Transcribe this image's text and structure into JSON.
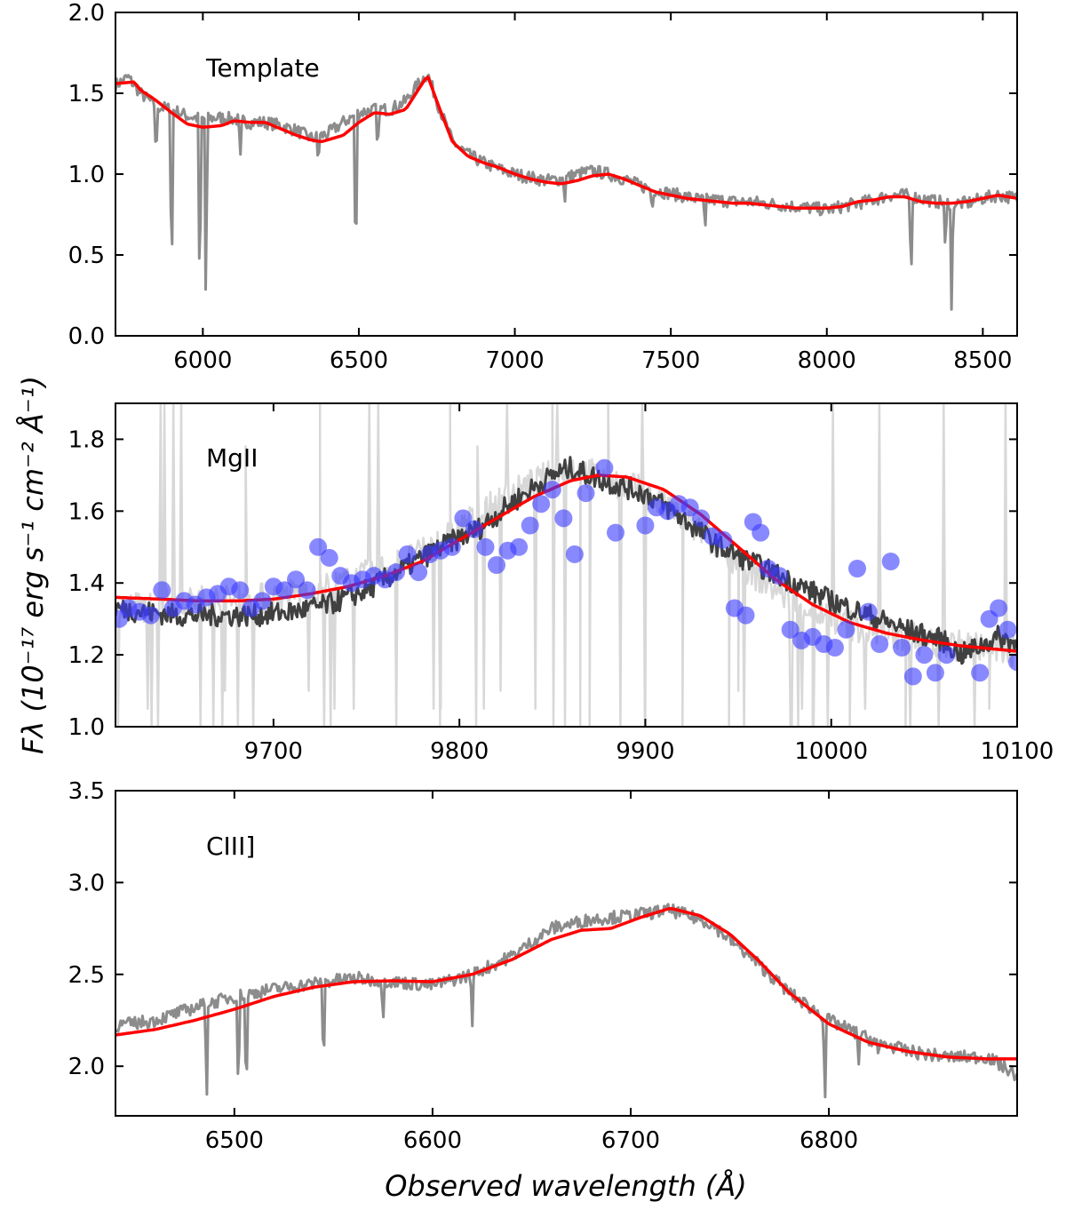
{
  "figure": {
    "ylabel": "Fλ (10⁻¹⁷ erg s⁻¹ cm⁻² Å⁻¹)",
    "xlabel": "Observed wavelength (Å)"
  },
  "colors": {
    "spectrum_gray": "#8c8c8c",
    "model_red": "#ff0000",
    "spectrum_dark": "#404040",
    "spectrum_light": "#d8d8d8",
    "binned_blue": "#3b3bff"
  },
  "chart_data": [
    {
      "type": "line",
      "label": "Template",
      "xlim": [
        5720,
        8610
      ],
      "ylim": [
        0.0,
        2.0
      ],
      "xticks": [
        "6000",
        "6500",
        "7000",
        "7500",
        "8000",
        "8500"
      ],
      "yticks": [
        "0.0",
        "0.5",
        "1.0",
        "1.5",
        "2.0"
      ],
      "series": [
        {
          "name": "template spectrum",
          "color": "#8c8c8c",
          "x": [
            5720,
            5760,
            5800,
            5850,
            5900,
            5950,
            6000,
            6050,
            6100,
            6150,
            6200,
            6250,
            6300,
            6350,
            6400,
            6450,
            6500,
            6550,
            6600,
            6650,
            6700,
            6720,
            6760,
            6800,
            6850,
            6900,
            6950,
            7000,
            7050,
            7100,
            7150,
            7200,
            7250,
            7300,
            7350,
            7400,
            7450,
            7500,
            7550,
            7600,
            7650,
            7700,
            7750,
            7800,
            7850,
            7900,
            7950,
            8000,
            8050,
            8100,
            8150,
            8200,
            8250,
            8300,
            8350,
            8400,
            8450,
            8500,
            8550,
            8610
          ],
          "y": [
            1.55,
            1.6,
            1.5,
            1.42,
            1.4,
            1.36,
            1.34,
            1.35,
            1.34,
            1.32,
            1.32,
            1.3,
            1.27,
            1.22,
            1.25,
            1.32,
            1.38,
            1.4,
            1.4,
            1.45,
            1.58,
            1.62,
            1.4,
            1.2,
            1.12,
            1.07,
            1.03,
            1.0,
            0.98,
            0.96,
            0.97,
            1.0,
            1.02,
            1.0,
            0.97,
            0.93,
            0.9,
            0.88,
            0.86,
            0.84,
            0.84,
            0.83,
            0.83,
            0.82,
            0.81,
            0.8,
            0.79,
            0.78,
            0.8,
            0.82,
            0.84,
            0.87,
            0.87,
            0.85,
            0.83,
            0.82,
            0.82,
            0.85,
            0.87,
            0.85
          ],
          "absorption_dips": [
            [
              5850,
              1.05
            ],
            [
              5900,
              0.15
            ],
            [
              5990,
              0.05
            ],
            [
              6010,
              0.02
            ],
            [
              6120,
              1.1
            ],
            [
              6370,
              1.05
            ],
            [
              6490,
              0.22
            ],
            [
              6560,
              1.1
            ],
            [
              7160,
              0.8
            ],
            [
              7440,
              0.75
            ],
            [
              7610,
              0.65
            ],
            [
              8270,
              0.27
            ],
            [
              8380,
              0.5
            ],
            [
              8400,
              0.08
            ]
          ]
        },
        {
          "name": "template model",
          "color": "#ff0000",
          "x": [
            5720,
            5780,
            5800,
            5840,
            5900,
            5950,
            6000,
            6060,
            6100,
            6150,
            6200,
            6250,
            6300,
            6350,
            6380,
            6450,
            6500,
            6550,
            6600,
            6650,
            6690,
            6720,
            6760,
            6800,
            6850,
            6900,
            6950,
            7000,
            7050,
            7100,
            7150,
            7200,
            7250,
            7300,
            7350,
            7400,
            7450,
            7500,
            7550,
            7600,
            7650,
            7700,
            7750,
            7800,
            7850,
            7900,
            7950,
            8000,
            8050,
            8100,
            8150,
            8200,
            8250,
            8300,
            8350,
            8400,
            8450,
            8500,
            8550,
            8610
          ],
          "y": [
            1.56,
            1.57,
            1.52,
            1.47,
            1.38,
            1.31,
            1.29,
            1.3,
            1.33,
            1.32,
            1.32,
            1.28,
            1.24,
            1.21,
            1.2,
            1.24,
            1.32,
            1.38,
            1.37,
            1.4,
            1.52,
            1.61,
            1.4,
            1.2,
            1.11,
            1.07,
            1.04,
            1.0,
            0.97,
            0.95,
            0.94,
            0.96,
            0.99,
            1.0,
            0.97,
            0.93,
            0.89,
            0.87,
            0.85,
            0.84,
            0.83,
            0.82,
            0.82,
            0.81,
            0.8,
            0.79,
            0.79,
            0.79,
            0.8,
            0.83,
            0.84,
            0.86,
            0.86,
            0.83,
            0.82,
            0.82,
            0.83,
            0.85,
            0.87,
            0.85
          ]
        }
      ]
    },
    {
      "type": "line",
      "label": "MgII",
      "xlim": [
        9615,
        10100
      ],
      "ylim": [
        1.0,
        1.9
      ],
      "xticks": [
        "9700",
        "9800",
        "9900",
        "10000",
        "10100"
      ],
      "yticks": [
        "1.0",
        "1.2",
        "1.4",
        "1.6",
        "1.8"
      ],
      "series": [
        {
          "name": "raw spectrum",
          "color": "#d8d8d8",
          "x": [
            9615,
            9640,
            9660,
            9680,
            9700,
            9720,
            9740,
            9760,
            9780,
            9800,
            9820,
            9840,
            9860,
            9880,
            9900,
            9920,
            9940,
            9960,
            9980,
            10000,
            10020,
            10040,
            10060,
            10080,
            10100
          ],
          "y": [
            1.33,
            1.34,
            1.35,
            1.35,
            1.36,
            1.38,
            1.4,
            1.44,
            1.48,
            1.55,
            1.62,
            1.68,
            1.72,
            1.69,
            1.65,
            1.58,
            1.5,
            1.42,
            1.35,
            1.3,
            1.27,
            1.25,
            1.23,
            1.22,
            1.21
          ],
          "spikes": [
            [
              9685,
              1.78
            ],
            [
              9725,
              1.9
            ],
            [
              9790,
              1.05
            ],
            [
              9795,
              1.9
            ],
            [
              9850,
              1.9
            ],
            [
              9865,
              1.0
            ],
            [
              9870,
              1.0
            ],
            [
              9880,
              1.9
            ],
            [
              9900,
              1.0
            ],
            [
              9920,
              1.0
            ],
            [
              9945,
              1.0
            ],
            [
              9950,
              1.1
            ],
            [
              9990,
              1.0
            ],
            [
              10010,
              1.0
            ],
            [
              10040,
              1.0
            ],
            [
              10085,
              1.05
            ]
          ]
        },
        {
          "name": "cleaned spectrum",
          "color": "#404040",
          "x": [
            9615,
            9630,
            9650,
            9670,
            9690,
            9710,
            9730,
            9750,
            9770,
            9790,
            9810,
            9830,
            9850,
            9860,
            9880,
            9900,
            9920,
            9940,
            9960,
            9980,
            10000,
            10020,
            10040,
            10060,
            10070,
            10090,
            10100
          ],
          "y": [
            1.33,
            1.32,
            1.31,
            1.31,
            1.31,
            1.32,
            1.34,
            1.38,
            1.44,
            1.5,
            1.55,
            1.63,
            1.7,
            1.72,
            1.68,
            1.65,
            1.58,
            1.5,
            1.45,
            1.4,
            1.35,
            1.31,
            1.27,
            1.24,
            1.2,
            1.25,
            1.23
          ]
        },
        {
          "name": "Gaussian fit",
          "color": "#ff0000",
          "x": [
            9615,
            9640,
            9660,
            9680,
            9700,
            9720,
            9740,
            9760,
            9780,
            9800,
            9820,
            9840,
            9860,
            9875,
            9890,
            9910,
            9930,
            9950,
            9970,
            9990,
            10010,
            10030,
            10050,
            10070,
            10100
          ],
          "y": [
            1.36,
            1.355,
            1.35,
            1.35,
            1.355,
            1.37,
            1.39,
            1.42,
            1.46,
            1.52,
            1.58,
            1.64,
            1.685,
            1.7,
            1.695,
            1.66,
            1.59,
            1.5,
            1.41,
            1.34,
            1.29,
            1.26,
            1.24,
            1.225,
            1.21
          ]
        },
        {
          "name": "binned points",
          "color": "#3b3bff",
          "type": "scatter",
          "x": [
            9617,
            9622,
            9628,
            9634,
            9640,
            9646,
            9652,
            9658,
            9664,
            9670,
            9676,
            9682,
            9688,
            9694,
            9700,
            9706,
            9712,
            9718,
            9724,
            9730,
            9736,
            9742,
            9748,
            9754,
            9760,
            9766,
            9772,
            9778,
            9784,
            9790,
            9796,
            9802,
            9808,
            9814,
            9820,
            9826,
            9832,
            9838,
            9844,
            9850,
            9856,
            9862,
            9868,
            9878,
            9884,
            9900,
            9906,
            9912,
            9918,
            9924,
            9930,
            9936,
            9942,
            9948,
            9954,
            9958,
            9962,
            9966,
            9972,
            9978,
            9984,
            9990,
            9996,
            10002,
            10008,
            10014,
            10020,
            10026,
            10032,
            10038,
            10044,
            10050,
            10056,
            10062,
            10080,
            10085,
            10090,
            10095,
            10100
          ],
          "y": [
            1.3,
            1.33,
            1.32,
            1.31,
            1.38,
            1.33,
            1.35,
            1.34,
            1.36,
            1.37,
            1.39,
            1.38,
            1.33,
            1.35,
            1.39,
            1.38,
            1.41,
            1.38,
            1.5,
            1.47,
            1.42,
            1.4,
            1.41,
            1.42,
            1.41,
            1.43,
            1.48,
            1.43,
            1.48,
            1.49,
            1.5,
            1.58,
            1.55,
            1.5,
            1.45,
            1.49,
            1.5,
            1.56,
            1.62,
            1.66,
            1.58,
            1.48,
            1.65,
            1.72,
            1.54,
            1.56,
            1.61,
            1.6,
            1.62,
            1.61,
            1.58,
            1.53,
            1.52,
            1.33,
            1.31,
            1.57,
            1.54,
            1.44,
            1.42,
            1.27,
            1.24,
            1.25,
            1.23,
            1.22,
            1.27,
            1.44,
            1.32,
            1.23,
            1.46,
            1.22,
            1.14,
            1.2,
            1.15,
            1.2,
            1.15,
            1.3,
            1.33,
            1.27,
            1.18
          ]
        }
      ]
    },
    {
      "type": "line",
      "label": "CIII]",
      "xlim": [
        6440,
        6895
      ],
      "ylim": [
        1.73,
        3.5
      ],
      "xticks": [
        "6500",
        "6600",
        "6700",
        "6800"
      ],
      "yticks": [
        "2.0",
        "2.5",
        "3.0",
        "3.5"
      ],
      "series": [
        {
          "name": "CIII] spectrum",
          "color": "#8c8c8c",
          "x": [
            6440,
            6460,
            6480,
            6500,
            6520,
            6540,
            6560,
            6580,
            6600,
            6620,
            6640,
            6660,
            6680,
            6700,
            6720,
            6740,
            6760,
            6780,
            6800,
            6820,
            6840,
            6860,
            6880,
            6895
          ],
          "y": [
            2.22,
            2.25,
            2.32,
            2.38,
            2.42,
            2.45,
            2.48,
            2.46,
            2.44,
            2.5,
            2.6,
            2.75,
            2.8,
            2.82,
            2.85,
            2.78,
            2.6,
            2.4,
            2.25,
            2.15,
            2.08,
            2.05,
            2.05,
            1.95
          ],
          "absorption_dips": [
            [
              6486,
              1.73
            ],
            [
              6502,
              1.76
            ],
            [
              6506,
              1.73
            ],
            [
              6545,
              1.9
            ],
            [
              6575,
              2.2
            ],
            [
              6620,
              2.2
            ],
            [
              6798,
              1.73
            ],
            [
              6815,
              2.0
            ],
            [
              6825,
              2.05
            ]
          ]
        },
        {
          "name": "CIII] model",
          "color": "#ff0000",
          "x": [
            6440,
            6460,
            6480,
            6500,
            6520,
            6540,
            6560,
            6580,
            6600,
            6620,
            6640,
            6660,
            6675,
            6690,
            6705,
            6720,
            6735,
            6750,
            6765,
            6780,
            6800,
            6820,
            6840,
            6860,
            6880,
            6895
          ],
          "y": [
            2.17,
            2.2,
            2.25,
            2.31,
            2.38,
            2.43,
            2.46,
            2.465,
            2.46,
            2.5,
            2.58,
            2.69,
            2.74,
            2.75,
            2.81,
            2.86,
            2.82,
            2.72,
            2.57,
            2.4,
            2.23,
            2.13,
            2.08,
            2.05,
            2.04,
            2.04
          ]
        }
      ]
    }
  ]
}
